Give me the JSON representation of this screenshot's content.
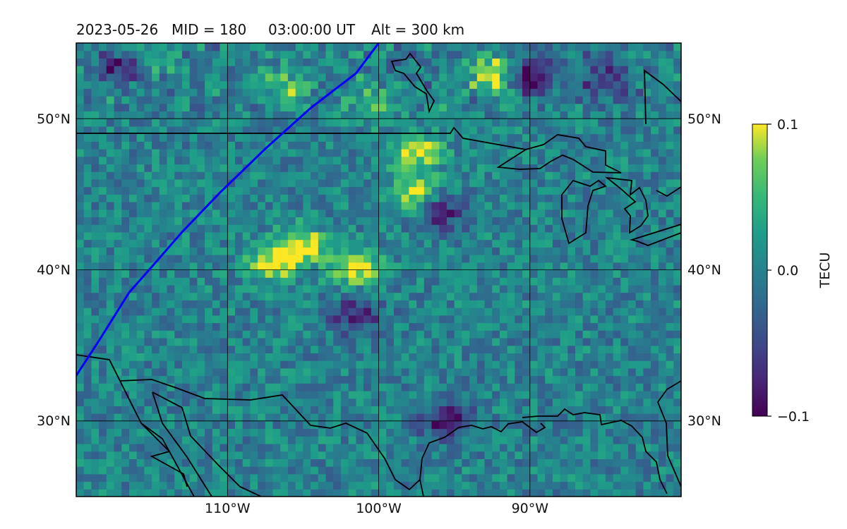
{
  "title": {
    "date": "2023-05-26",
    "mid": "MID = 180",
    "time": "03:00:00  UT",
    "alt": "Alt = 300 km"
  },
  "chart_data": {
    "type": "heatmap",
    "projection": "plate carree map",
    "lon_range": [
      -120,
      -80
    ],
    "lat_range": [
      25,
      55
    ],
    "x_ticks": [
      -110,
      -100,
      -90
    ],
    "x_tick_labels": [
      "110°W",
      "100°W",
      "90°W"
    ],
    "y_ticks": [
      30,
      40,
      50
    ],
    "y_tick_labels": [
      "30°N",
      "40°N",
      "50°N"
    ],
    "grid": true,
    "colormap": "viridis",
    "colorbar": {
      "label": "TECU",
      "range": [
        -0.1,
        0.1
      ],
      "ticks": [
        0.1,
        0.0,
        -0.1
      ],
      "tick_labels": [
        "0.1",
        "0.0",
        "−0.1"
      ],
      "placement": "right"
    },
    "field_description_values": {
      "background_mean_tecu": 0.0,
      "positive_anomalies": [
        {
          "lon": -115.5,
          "lat": 54.0,
          "value": 0.05
        },
        {
          "lon": -106.0,
          "lat": 52.0,
          "value": 0.06
        },
        {
          "lon": -92.5,
          "lat": 53.0,
          "value": 0.1
        },
        {
          "lon": -100.5,
          "lat": 51.0,
          "value": 0.06
        },
        {
          "lon": -107.0,
          "lat": 40.5,
          "value": 0.1
        },
        {
          "lon": -101.5,
          "lat": 40.2,
          "value": 0.1
        },
        {
          "lon": -105.0,
          "lat": 41.6,
          "value": 0.1
        },
        {
          "lon": -97.5,
          "lat": 47.9,
          "value": 0.1
        },
        {
          "lon": -97.5,
          "lat": 45.0,
          "value": 0.1
        }
      ],
      "negative_anomalies": [
        {
          "lon": -117.0,
          "lat": 53.5,
          "value": -0.09
        },
        {
          "lon": -90.0,
          "lat": 53.0,
          "value": -0.1
        },
        {
          "lon": -85.0,
          "lat": 52.5,
          "value": -0.07
        },
        {
          "lon": -95.5,
          "lat": 30.0,
          "value": -0.1
        },
        {
          "lon": -96.0,
          "lat": 44.0,
          "value": -0.09
        },
        {
          "lon": -101.5,
          "lat": 37.0,
          "value": -0.08
        }
      ]
    },
    "track": {
      "color": "#0000ff",
      "points": [
        [
          -120,
          33.0
        ],
        [
          -118.5,
          35.3
        ],
        [
          -116.5,
          38.5
        ],
        [
          -115.0,
          40.2
        ],
        [
          -113.0,
          42.5
        ],
        [
          -110.5,
          45.1
        ],
        [
          -107.5,
          48.0
        ],
        [
          -104.5,
          50.7
        ],
        [
          -101.5,
          53.0
        ],
        [
          -100.0,
          55.0
        ]
      ]
    }
  }
}
